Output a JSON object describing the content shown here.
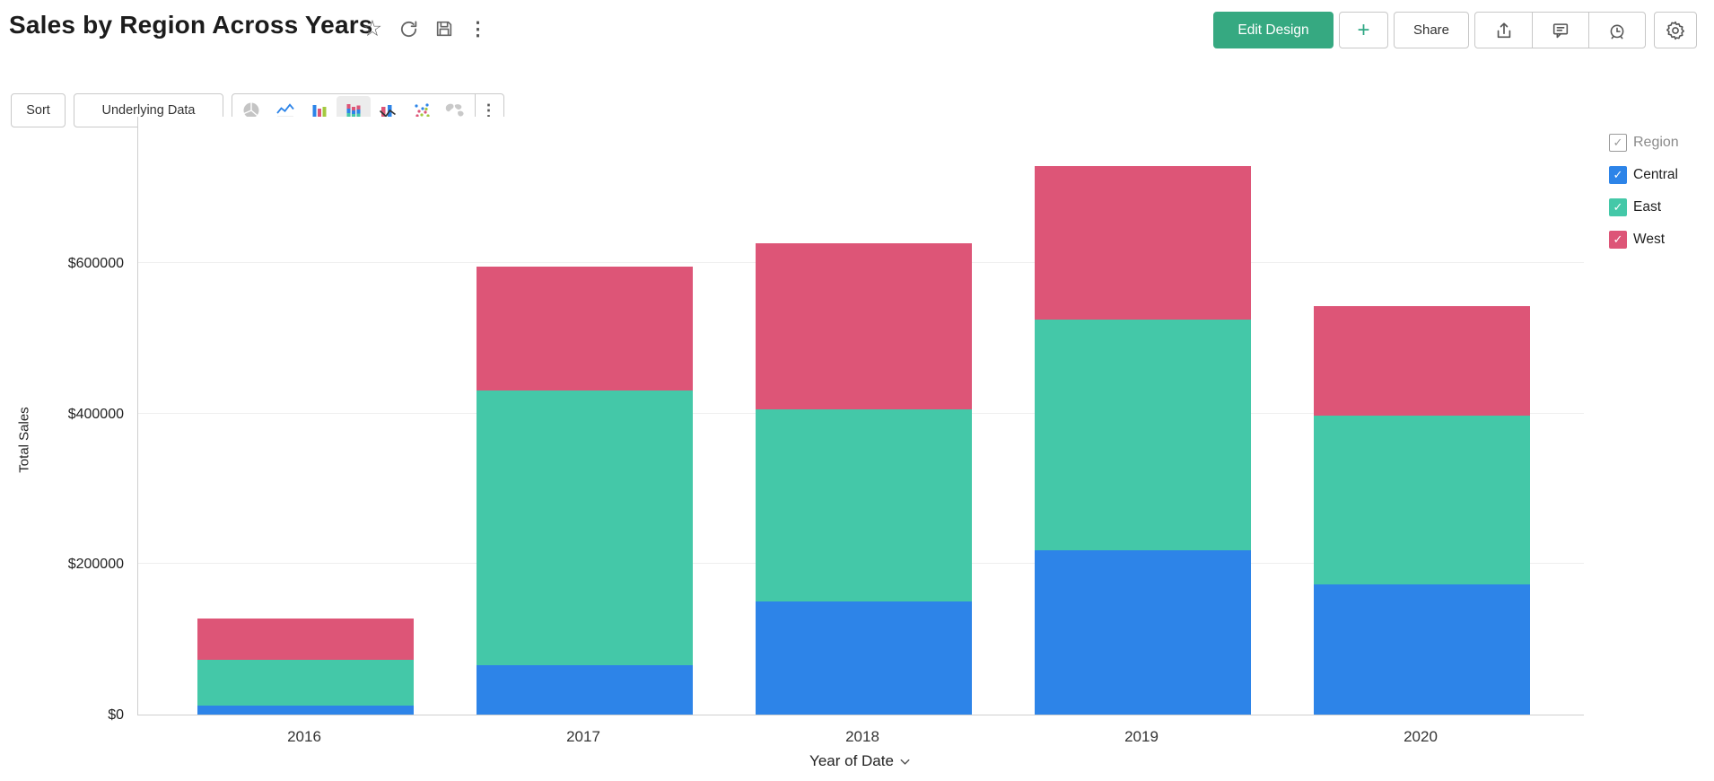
{
  "header": {
    "title": "Sales by Region Across Years",
    "actions": {
      "edit_design_label": "Edit Design",
      "plus_label": "+",
      "share_label": "Share",
      "kebab_label": "⋮"
    },
    "icon_names": [
      "star",
      "refresh",
      "save",
      "more",
      "export",
      "comment",
      "alarm",
      "settings"
    ]
  },
  "toolbar": {
    "sort_label": "Sort",
    "underlying_data_label": "Underlying Data",
    "chart_types": [
      "pie",
      "line",
      "bar",
      "stacked-bar",
      "combo",
      "scatter",
      "map"
    ],
    "selected_chart_type": "stacked-bar",
    "kebab_label": "⋮"
  },
  "legend": {
    "title": "Region",
    "title_checked": true,
    "items": [
      {
        "label": "Central",
        "color": "#2d84e8",
        "checked": true
      },
      {
        "label": "East",
        "color": "#44c8a8",
        "checked": true
      },
      {
        "label": "West",
        "color": "#dd5577",
        "checked": true
      }
    ]
  },
  "chart_data": {
    "type": "bar",
    "stacked": true,
    "title": "Sales by Region Across Years",
    "categories": [
      "2016",
      "2017",
      "2018",
      "2019",
      "2020"
    ],
    "series": [
      {
        "name": "Central",
        "color": "#2d84e8",
        "values": [
          12000,
          66000,
          150000,
          219000,
          173000
        ]
      },
      {
        "name": "East",
        "color": "#44c8a8",
        "values": [
          61000,
          365000,
          256000,
          306000,
          224000
        ]
      },
      {
        "name": "West",
        "color": "#dd5577",
        "values": [
          55000,
          165000,
          221000,
          204000,
          146000
        ]
      }
    ],
    "totals": [
      128000,
      596000,
      627000,
      729000,
      543000
    ],
    "xlabel": "Year of Date",
    "ylabel": "Total Sales",
    "yticks": [
      {
        "label": "$0",
        "value": 0
      },
      {
        "label": "$200000",
        "value": 200000
      },
      {
        "label": "$400000",
        "value": 400000
      },
      {
        "label": "$600000",
        "value": 600000
      }
    ],
    "ylim": [
      0,
      796000
    ],
    "grid": "horizontal",
    "legend_position": "right"
  }
}
